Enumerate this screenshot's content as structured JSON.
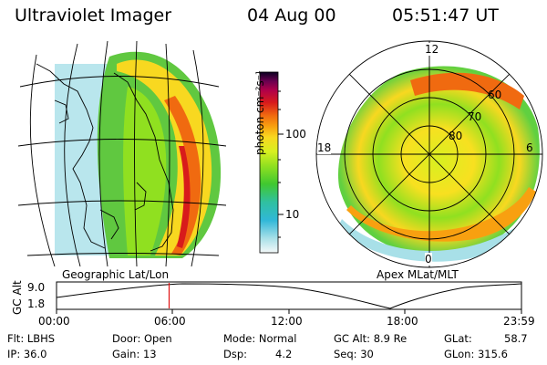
{
  "header": {
    "title": "Ultraviolet Imager",
    "date": "04 Aug 00",
    "time": "05:51:47 UT"
  },
  "left_panel": {
    "caption": "Geographic Lat/Lon"
  },
  "right_panel": {
    "caption": "Apex MLat/MLT",
    "mlt_labels": [
      "12",
      "18",
      "6",
      "0"
    ],
    "lat_labels": [
      "60",
      "70",
      "80"
    ]
  },
  "colorbar": {
    "unit_label": "photon cm⁻²s⁻¹",
    "ticks": [
      "100",
      "10"
    ],
    "colors": [
      "#0a0020",
      "#6a0050",
      "#b0004a",
      "#d81b1b",
      "#f06a10",
      "#f8a010",
      "#f8d820",
      "#d8f020",
      "#90e020",
      "#40c830",
      "#30c0a0",
      "#30b8d8",
      "#a8e0e8",
      "#f4f8f8"
    ]
  },
  "timeline": {
    "axis_label": "GC Alt",
    "y_ticks": [
      "9.0",
      "1.8"
    ],
    "x_ticks": [
      "00:00",
      "06:00",
      "12:00",
      "18:00",
      "23:59"
    ],
    "marker_time": "05:51:47"
  },
  "info": {
    "flt": "Flt: LBHS",
    "ip": "IP: 36.0",
    "door": "Door: Open",
    "gain": "Gain: 13",
    "mode": "Mode: Normal",
    "dsp_label": "Dsp:",
    "dsp_value": "4.2",
    "gcalt": "GC Alt: 8.9 Re",
    "seq": "Seq: 30",
    "glat_label": "GLat:",
    "glat_value": "58.7",
    "glon": "GLon: 315.6"
  }
}
